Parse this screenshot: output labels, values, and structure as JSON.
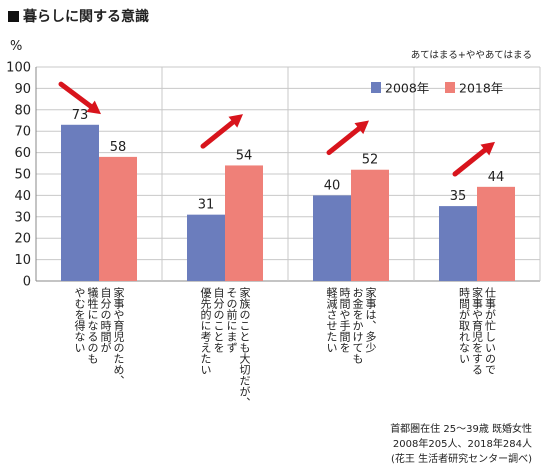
{
  "title": "暮らしに関する意識",
  "subnote": "あてはまる+ややあてはまる",
  "source_lines": [
    "首都圏在住 25〜39歳 既婚女性",
    "2008年205人、2018年284人",
    "(花王 生活者研究センター調べ)"
  ],
  "colors": {
    "2008": "#6b7dbd",
    "2018": "#ef8078",
    "arrow": "#d8141c",
    "grid": "#c8c8c8"
  },
  "chart_data": {
    "type": "bar",
    "ylabel": "%",
    "ylim": [
      0,
      100
    ],
    "yticks": [
      0,
      10,
      20,
      30,
      40,
      50,
      60,
      70,
      80,
      90,
      100
    ],
    "grid": true,
    "legend_position": "top-right",
    "categories": [
      "家事や育児のため、自分の時間が犠牲になるのもやむを得ない",
      "家族のことも大切だが、その前にまず自分のことを優先的に考えたい",
      "家事は、多少お金をかけても時間や手間を軽減させたい",
      "仕事が忙しいので家事や育児をする時間が取れない"
    ],
    "category_lines": [
      [
        "家事や育児のため、",
        "自分の時間が",
        "犠牲になるのも",
        "やむを得ない"
      ],
      [
        "家族のことも大切だが、",
        "その前にまず",
        "自分のことを",
        "優先的に考えたい"
      ],
      [
        "家事は、多少",
        "お金をかけても",
        "時間や手間を",
        "軽減させたい"
      ],
      [
        "仕事が忙しいので",
        "家事や育児をする",
        "時間が取れない"
      ]
    ],
    "series": [
      {
        "name": "2008年",
        "values": [
          73,
          31,
          40,
          35
        ]
      },
      {
        "name": "2018年",
        "values": [
          58,
          54,
          52,
          44
        ]
      }
    ],
    "trend_arrows": [
      "down",
      "up",
      "up",
      "up"
    ]
  }
}
